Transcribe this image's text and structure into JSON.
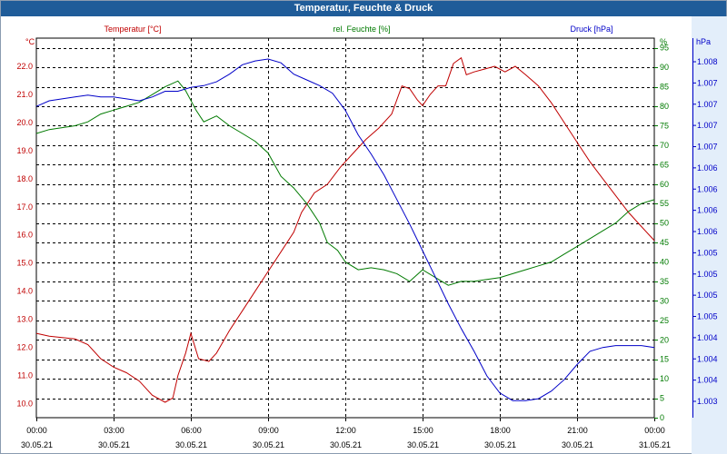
{
  "window": {
    "title": "Temperatur, Feuchte & Druck"
  },
  "colors": {
    "temp": "#c00000",
    "hum": "#007a00",
    "press": "#0000c8",
    "title_bg": "#1f5c99"
  },
  "chart_data": {
    "type": "line",
    "title": "Temperatur, Feuchte & Druck",
    "x_ticks": [
      {
        "time": "00:00",
        "date": "30.05.21"
      },
      {
        "time": "03:00",
        "date": "30.05.21"
      },
      {
        "time": "06:00",
        "date": "30.05.21"
      },
      {
        "time": "09:00",
        "date": "30.05.21"
      },
      {
        "time": "12:00",
        "date": "30.05.21"
      },
      {
        "time": "15:00",
        "date": "30.05.21"
      },
      {
        "time": "18:00",
        "date": "30.05.21"
      },
      {
        "time": "21:00",
        "date": "30.05.21"
      },
      {
        "time": "00:00",
        "date": "31.05.21"
      }
    ],
    "xlim_hours": [
      0,
      24
    ],
    "axes": {
      "temp": {
        "label": "Temperatur [°C]",
        "unit": "°C",
        "range": [
          9.5,
          23.0
        ],
        "ticks": [
          "10.0",
          "11.0",
          "12.0",
          "13.0",
          "14.0",
          "15.0",
          "16.0",
          "17.0",
          "18.0",
          "19.0",
          "20.0",
          "21.0",
          "22.0"
        ]
      },
      "hum": {
        "label": "rel. Feuchte [%]",
        "unit": "%",
        "range": [
          0,
          97.5
        ],
        "ticks": [
          "0",
          "5",
          "10",
          "15",
          "20",
          "25",
          "30",
          "35",
          "40",
          "45",
          "50",
          "55",
          "60",
          "65",
          "70",
          "75",
          "80",
          "85",
          "90",
          "95"
        ]
      },
      "press": {
        "label": "Druck [hPa]",
        "unit": "hPa",
        "ticks": [
          "1.008",
          "1.007",
          "1.007",
          "1.007",
          "1.007",
          "1.006",
          "1.006",
          "1.006",
          "1.006",
          "1.005",
          "1.005",
          "1.005",
          "1.005",
          "1.004",
          "1.004",
          "1.004",
          "1.003"
        ]
      }
    },
    "series": [
      {
        "name": "Temperatur",
        "axis": "temp",
        "points": [
          [
            0,
            12.5
          ],
          [
            0.5,
            12.4
          ],
          [
            1,
            12.35
          ],
          [
            1.5,
            12.3
          ],
          [
            2,
            12.1
          ],
          [
            2.5,
            11.6
          ],
          [
            3,
            11.3
          ],
          [
            3.5,
            11.1
          ],
          [
            4,
            10.8
          ],
          [
            4.5,
            10.3
          ],
          [
            5,
            10.05
          ],
          [
            5.3,
            10.2
          ],
          [
            5.5,
            11.0
          ],
          [
            5.8,
            11.8
          ],
          [
            6.0,
            12.5
          ],
          [
            6.3,
            11.6
          ],
          [
            6.7,
            11.5
          ],
          [
            7.0,
            11.8
          ],
          [
            7.5,
            12.6
          ],
          [
            8,
            13.3
          ],
          [
            8.5,
            14.0
          ],
          [
            9,
            14.7
          ],
          [
            9.5,
            15.4
          ],
          [
            10,
            16.1
          ],
          [
            10.3,
            16.8
          ],
          [
            10.8,
            17.5
          ],
          [
            11.3,
            17.8
          ],
          [
            11.8,
            18.4
          ],
          [
            12.3,
            18.9
          ],
          [
            12.8,
            19.4
          ],
          [
            13.3,
            19.8
          ],
          [
            13.8,
            20.3
          ],
          [
            14.2,
            21.3
          ],
          [
            14.5,
            21.2
          ],
          [
            14.8,
            20.8
          ],
          [
            15.0,
            20.6
          ],
          [
            15.3,
            21.0
          ],
          [
            15.6,
            21.3
          ],
          [
            15.9,
            21.3
          ],
          [
            16.2,
            22.1
          ],
          [
            16.5,
            22.3
          ],
          [
            16.7,
            21.7
          ],
          [
            17.0,
            21.8
          ],
          [
            17.4,
            21.9
          ],
          [
            17.8,
            22.0
          ],
          [
            18.2,
            21.8
          ],
          [
            18.6,
            22.0
          ],
          [
            19.0,
            21.7
          ],
          [
            19.5,
            21.3
          ],
          [
            20.0,
            20.7
          ],
          [
            20.5,
            20.0
          ],
          [
            21.0,
            19.3
          ],
          [
            21.5,
            18.6
          ],
          [
            22.0,
            18.0
          ],
          [
            22.5,
            17.4
          ],
          [
            23.0,
            16.8
          ],
          [
            23.5,
            16.3
          ],
          [
            24.0,
            15.8
          ]
        ]
      },
      {
        "name": "rel. Feuchte",
        "axis": "hum",
        "points": [
          [
            0,
            73
          ],
          [
            0.5,
            74
          ],
          [
            1,
            74.5
          ],
          [
            1.5,
            75
          ],
          [
            2,
            76
          ],
          [
            2.5,
            78
          ],
          [
            3,
            79
          ],
          [
            3.5,
            80
          ],
          [
            4,
            81
          ],
          [
            4.5,
            83
          ],
          [
            5,
            85
          ],
          [
            5.5,
            86.5
          ],
          [
            5.8,
            84
          ],
          [
            6.2,
            79
          ],
          [
            6.5,
            76
          ],
          [
            7,
            77.5
          ],
          [
            7.5,
            75
          ],
          [
            8,
            73
          ],
          [
            8.5,
            71
          ],
          [
            9,
            68
          ],
          [
            9.5,
            62
          ],
          [
            10,
            59
          ],
          [
            10.5,
            55
          ],
          [
            11,
            50
          ],
          [
            11.3,
            45
          ],
          [
            11.7,
            43
          ],
          [
            12,
            40
          ],
          [
            12.5,
            38
          ],
          [
            13,
            38.5
          ],
          [
            13.5,
            38
          ],
          [
            14,
            37
          ],
          [
            14.5,
            35
          ],
          [
            15,
            38
          ],
          [
            15.5,
            36
          ],
          [
            16,
            34
          ],
          [
            16.5,
            35
          ],
          [
            17,
            35
          ],
          [
            17.5,
            35.5
          ],
          [
            18,
            36
          ],
          [
            18.5,
            37
          ],
          [
            19,
            38
          ],
          [
            19.5,
            39
          ],
          [
            20,
            40
          ],
          [
            20.5,
            42
          ],
          [
            21,
            44
          ],
          [
            21.5,
            46
          ],
          [
            22,
            48
          ],
          [
            22.5,
            50
          ],
          [
            23,
            53
          ],
          [
            23.5,
            55
          ],
          [
            24,
            56
          ]
        ]
      },
      {
        "name": "Druck",
        "axis": "press",
        "unit": "hPa",
        "note": "plotted on axis fraction 0=bottom of plot, 1=top",
        "points": [
          [
            0,
            0.82
          ],
          [
            0.5,
            0.835
          ],
          [
            1,
            0.84
          ],
          [
            1.5,
            0.845
          ],
          [
            2,
            0.85
          ],
          [
            2.5,
            0.845
          ],
          [
            3,
            0.845
          ],
          [
            3.5,
            0.84
          ],
          [
            4,
            0.835
          ],
          [
            4.5,
            0.845
          ],
          [
            5,
            0.86
          ],
          [
            5.5,
            0.86
          ],
          [
            6,
            0.87
          ],
          [
            6.5,
            0.875
          ],
          [
            7,
            0.885
          ],
          [
            7.5,
            0.905
          ],
          [
            8,
            0.93
          ],
          [
            8.5,
            0.94
          ],
          [
            9,
            0.945
          ],
          [
            9.5,
            0.935
          ],
          [
            10,
            0.905
          ],
          [
            10.5,
            0.89
          ],
          [
            11,
            0.875
          ],
          [
            11.5,
            0.855
          ],
          [
            12,
            0.81
          ],
          [
            12.5,
            0.745
          ],
          [
            13,
            0.695
          ],
          [
            13.5,
            0.64
          ],
          [
            14,
            0.575
          ],
          [
            14.5,
            0.51
          ],
          [
            15,
            0.44
          ],
          [
            15.5,
            0.37
          ],
          [
            16,
            0.3
          ],
          [
            16.5,
            0.235
          ],
          [
            17,
            0.175
          ],
          [
            17.5,
            0.11
          ],
          [
            18,
            0.065
          ],
          [
            18.5,
            0.045
          ],
          [
            19,
            0.045
          ],
          [
            19.5,
            0.05
          ],
          [
            20,
            0.07
          ],
          [
            20.5,
            0.1
          ],
          [
            21,
            0.14
          ],
          [
            21.5,
            0.175
          ],
          [
            22,
            0.185
          ],
          [
            22.5,
            0.19
          ],
          [
            23,
            0.19
          ],
          [
            23.5,
            0.19
          ],
          [
            24,
            0.185
          ]
        ]
      }
    ]
  }
}
